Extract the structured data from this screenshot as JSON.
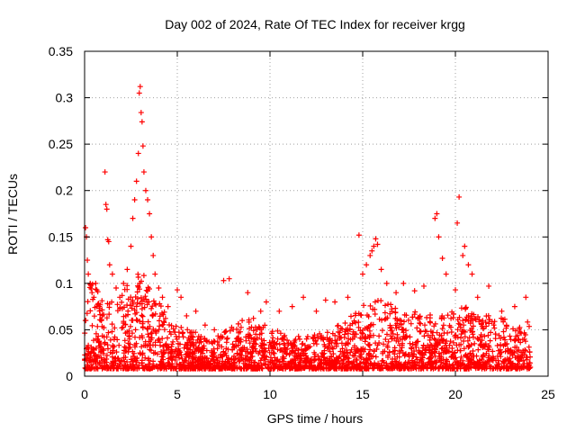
{
  "chart_data": {
    "type": "scatter",
    "title": "Day 002 of 2024, Rate Of TEC Index for receiver krgg",
    "xlabel": "GPS time / hours",
    "ylabel": "ROTI / TECUs",
    "xlim": [
      0,
      25
    ],
    "ylim": [
      0,
      0.35
    ],
    "xticks": [
      0,
      5,
      10,
      15,
      20,
      25
    ],
    "xtick_labels": [
      "0",
      "5",
      "10",
      "15",
      "20",
      "25"
    ],
    "yticks": [
      0,
      0.05,
      0.1,
      0.15,
      0.2,
      0.25,
      0.3,
      0.35
    ],
    "ytick_labels": [
      "0",
      "0.05",
      "0.1",
      "0.15",
      "0.2",
      "0.25",
      "0.3",
      "0.35"
    ],
    "grid": true,
    "marker": "plus",
    "color": "#ff0000",
    "series": [
      {
        "name": "ROTI",
        "points": [
          [
            0.05,
            0.16
          ],
          [
            0.1,
            0.15
          ],
          [
            0.15,
            0.125
          ],
          [
            0.2,
            0.11
          ],
          [
            0.3,
            0.1
          ],
          [
            0.4,
            0.09
          ],
          [
            0.5,
            0.085
          ],
          [
            0.6,
            0.1
          ],
          [
            0.8,
            0.075
          ],
          [
            0.9,
            0.06
          ],
          [
            1.1,
            0.22
          ],
          [
            1.15,
            0.185
          ],
          [
            1.2,
            0.18
          ],
          [
            1.25,
            0.147
          ],
          [
            1.3,
            0.145
          ],
          [
            1.35,
            0.12
          ],
          [
            1.5,
            0.11
          ],
          [
            1.7,
            0.095
          ],
          [
            1.9,
            0.085
          ],
          [
            2.1,
            0.1
          ],
          [
            2.3,
            0.115
          ],
          [
            2.5,
            0.14
          ],
          [
            2.6,
            0.17
          ],
          [
            2.7,
            0.19
          ],
          [
            2.8,
            0.21
          ],
          [
            2.9,
            0.24
          ],
          [
            2.95,
            0.305
          ],
          [
            3.0,
            0.312
          ],
          [
            3.05,
            0.284
          ],
          [
            3.1,
            0.274
          ],
          [
            3.15,
            0.248
          ],
          [
            3.2,
            0.22
          ],
          [
            3.3,
            0.2
          ],
          [
            3.4,
            0.19
          ],
          [
            3.5,
            0.175
          ],
          [
            3.6,
            0.15
          ],
          [
            3.7,
            0.13
          ],
          [
            3.8,
            0.11
          ],
          [
            4.0,
            0.095
          ],
          [
            4.2,
            0.085
          ],
          [
            4.5,
            0.075
          ],
          [
            5.0,
            0.093
          ],
          [
            5.2,
            0.085
          ],
          [
            5.5,
            0.065
          ],
          [
            6.0,
            0.07
          ],
          [
            6.5,
            0.055
          ],
          [
            7.0,
            0.05
          ],
          [
            7.5,
            0.103
          ],
          [
            7.8,
            0.105
          ],
          [
            8.5,
            0.06
          ],
          [
            8.8,
            0.09
          ],
          [
            9.5,
            0.07
          ],
          [
            9.8,
            0.08
          ],
          [
            10.5,
            0.07
          ],
          [
            11.2,
            0.075
          ],
          [
            11.8,
            0.085
          ],
          [
            12.5,
            0.07
          ],
          [
            13.0,
            0.082
          ],
          [
            13.5,
            0.08
          ],
          [
            14.2,
            0.085
          ],
          [
            14.8,
            0.152
          ],
          [
            15.0,
            0.11
          ],
          [
            15.2,
            0.12
          ],
          [
            15.4,
            0.13
          ],
          [
            15.5,
            0.135
          ],
          [
            15.6,
            0.14
          ],
          [
            15.7,
            0.148
          ],
          [
            15.8,
            0.142
          ],
          [
            16.0,
            0.115
          ],
          [
            16.3,
            0.1
          ],
          [
            16.8,
            0.09
          ],
          [
            17.2,
            0.1
          ],
          [
            17.8,
            0.092
          ],
          [
            18.3,
            0.097
          ],
          [
            18.9,
            0.17
          ],
          [
            19.0,
            0.175
          ],
          [
            19.1,
            0.15
          ],
          [
            19.3,
            0.127
          ],
          [
            19.5,
            0.11
          ],
          [
            20.0,
            0.093
          ],
          [
            20.1,
            0.165
          ],
          [
            20.2,
            0.193
          ],
          [
            20.4,
            0.13
          ],
          [
            20.5,
            0.14
          ],
          [
            20.7,
            0.12
          ],
          [
            20.9,
            0.11
          ],
          [
            21.2,
            0.085
          ],
          [
            21.8,
            0.097
          ],
          [
            22.5,
            0.07
          ],
          [
            23.2,
            0.075
          ],
          [
            23.8,
            0.085
          ]
        ]
      }
    ]
  }
}
